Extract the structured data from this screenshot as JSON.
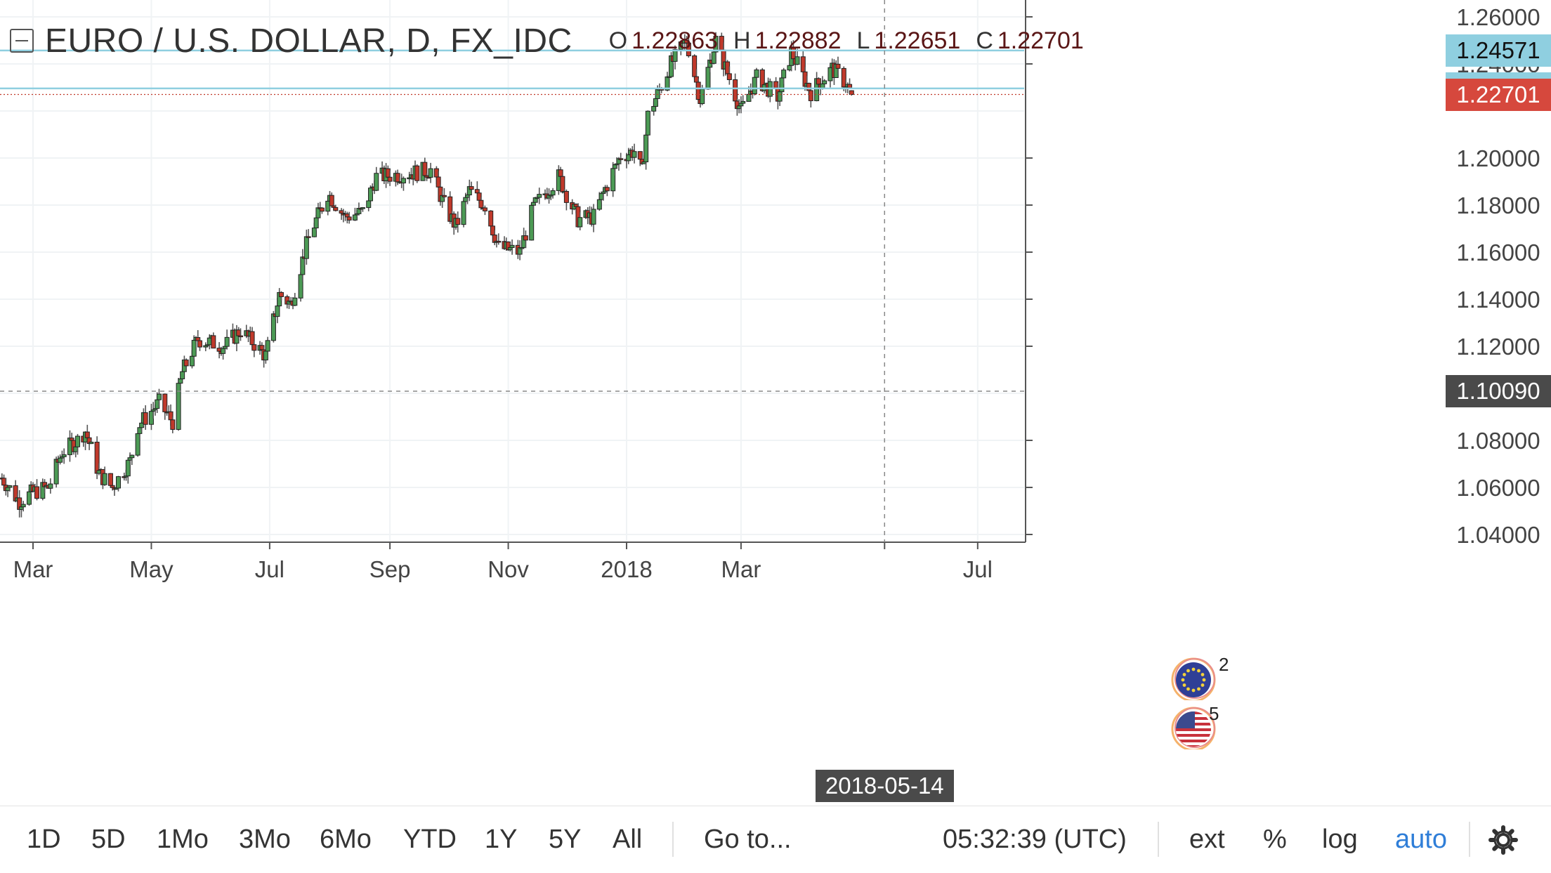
{
  "legend": {
    "title": "EURO / U.S. DOLLAR, D, FX_IDC",
    "open_label": "O",
    "open": "1.22863",
    "high_label": "H",
    "high": "1.22882",
    "low_label": "L",
    "low": "1.22651",
    "close_label": "C",
    "close": "1.22701"
  },
  "price_axis": {
    "ticks": [
      "1.26000",
      "1.24000",
      "1.20000",
      "1.18000",
      "1.16000",
      "1.14000",
      "1.12000",
      "1.08000",
      "1.06000",
      "1.04000"
    ],
    "labels": [
      {
        "value": "1.24571",
        "type": "line",
        "color": "#8fcfe0"
      },
      {
        "value": "1.22958",
        "type": "line",
        "color": "#8fcfe0"
      },
      {
        "value": "1.22701",
        "type": "last",
        "color": "#d6483d"
      },
      {
        "value": "1.10090",
        "type": "cursor",
        "color": "#4a4a4a"
      }
    ]
  },
  "time_axis": {
    "labels": [
      "Mar",
      "May",
      "Jul",
      "Sep",
      "Nov",
      "2018",
      "Mar",
      "Jul"
    ],
    "cursor_date": "2018-05-14"
  },
  "chart_data": {
    "type": "candlestick",
    "xlabel": "",
    "ylabel": "",
    "ylim": [
      1.038,
      1.266
    ],
    "x_range": [
      "2017-02-13",
      "2018-07-31"
    ],
    "x_ticks": [
      "2017-03-01",
      "2017-05-01",
      "2017-07-01",
      "2017-09-01",
      "2017-11-01",
      "2018-01-01",
      "2018-03-01",
      "2018-05-14",
      "2018-07-01"
    ],
    "close_anchors": [
      {
        "date": "2017-02-13",
        "close": 1.064
      },
      {
        "date": "2017-02-22",
        "close": 1.054
      },
      {
        "date": "2017-03-01",
        "close": 1.058
      },
      {
        "date": "2017-03-09",
        "close": 1.06
      },
      {
        "date": "2017-03-16",
        "close": 1.075
      },
      {
        "date": "2017-03-24",
        "close": 1.08
      },
      {
        "date": "2017-03-28",
        "close": 1.084
      },
      {
        "date": "2017-04-04",
        "close": 1.066
      },
      {
        "date": "2017-04-11",
        "close": 1.06
      },
      {
        "date": "2017-04-20",
        "close": 1.071
      },
      {
        "date": "2017-04-24",
        "close": 1.086
      },
      {
        "date": "2017-05-05",
        "close": 1.096
      },
      {
        "date": "2017-05-12",
        "close": 1.088
      },
      {
        "date": "2017-05-17",
        "close": 1.109
      },
      {
        "date": "2017-05-25",
        "close": 1.123
      },
      {
        "date": "2017-06-08",
        "close": 1.12
      },
      {
        "date": "2017-06-16",
        "close": 1.127
      },
      {
        "date": "2017-06-29",
        "close": 1.116
      },
      {
        "date": "2017-07-06",
        "close": 1.142
      },
      {
        "date": "2017-07-12",
        "close": 1.138
      },
      {
        "date": "2017-07-21",
        "close": 1.166
      },
      {
        "date": "2017-07-31",
        "close": 1.185
      },
      {
        "date": "2017-08-09",
        "close": 1.175
      },
      {
        "date": "2017-08-18",
        "close": 1.177
      },
      {
        "date": "2017-08-25",
        "close": 1.192
      },
      {
        "date": "2017-09-06",
        "close": 1.193
      },
      {
        "date": "2017-09-15",
        "close": 1.194
      },
      {
        "date": "2017-09-22",
        "close": 1.195
      },
      {
        "date": "2017-09-29",
        "close": 1.18
      },
      {
        "date": "2017-10-05",
        "close": 1.171
      },
      {
        "date": "2017-10-12",
        "close": 1.186
      },
      {
        "date": "2017-10-20",
        "close": 1.18
      },
      {
        "date": "2017-10-27",
        "close": 1.162
      },
      {
        "date": "2017-11-07",
        "close": 1.16
      },
      {
        "date": "2017-11-14",
        "close": 1.179
      },
      {
        "date": "2017-11-27",
        "close": 1.192
      },
      {
        "date": "2017-12-07",
        "close": 1.174
      },
      {
        "date": "2017-12-15",
        "close": 1.175
      },
      {
        "date": "2017-12-21",
        "close": 1.187
      },
      {
        "date": "2017-12-29",
        "close": 1.201
      },
      {
        "date": "2018-01-05",
        "close": 1.203
      },
      {
        "date": "2018-01-09",
        "close": 1.194
      },
      {
        "date": "2018-01-12",
        "close": 1.218
      },
      {
        "date": "2018-01-24",
        "close": 1.24
      },
      {
        "date": "2018-02-01",
        "close": 1.25
      },
      {
        "date": "2018-02-08",
        "close": 1.225
      },
      {
        "date": "2018-02-16",
        "close": 1.25
      },
      {
        "date": "2018-03-01",
        "close": 1.22
      },
      {
        "date": "2018-03-09",
        "close": 1.234
      },
      {
        "date": "2018-03-20",
        "close": 1.226
      },
      {
        "date": "2018-03-27",
        "close": 1.245
      },
      {
        "date": "2018-04-06",
        "close": 1.228
      },
      {
        "date": "2018-04-17",
        "close": 1.238
      },
      {
        "date": "2018-04-24",
        "close": 1.232
      },
      {
        "date": "2018-04-27",
        "close": 1.227
      }
    ],
    "horizontal_lines": [
      1.24571,
      1.22958
    ],
    "last_price": 1.22701,
    "crosshair": {
      "date": "2018-05-14",
      "price": 1.1009
    }
  },
  "events": [
    {
      "name": "eu-flag-icon",
      "count": "2"
    },
    {
      "name": "us-flag-icon",
      "count": "5"
    }
  ],
  "toolbar": {
    "ranges": [
      "1D",
      "5D",
      "1Mo",
      "3Mo",
      "6Mo",
      "YTD",
      "1Y",
      "5Y",
      "All"
    ],
    "goto": "Go to...",
    "clock": "05:32:39 (UTC)",
    "ext": "ext",
    "percent": "%",
    "log": "log",
    "auto": "auto"
  }
}
